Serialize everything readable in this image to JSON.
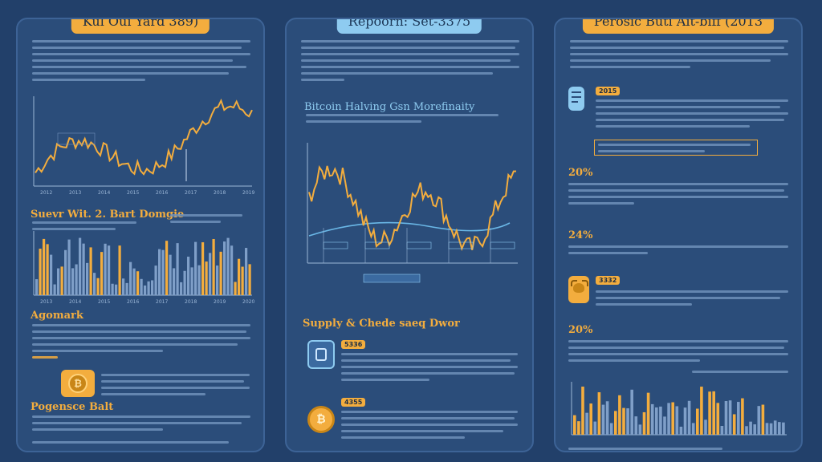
{
  "panels": {
    "left": {
      "title": "Kul Oui Yard 389)",
      "section1_title": "Suevr Wit. 2. Bart Domgie",
      "section2_title": "Agomark",
      "section3_title": "Pogensce Balt",
      "chart_ticks": [
        "2012",
        "2013",
        "2014",
        "2015",
        "2016",
        "2017",
        "2018",
        "2019"
      ],
      "bar_ticks": [
        "2013",
        "2014",
        "2015",
        "2016",
        "2017",
        "2018",
        "2019",
        "2020"
      ]
    },
    "middle": {
      "title": "Repoorn: Set-3375",
      "chart_title": "Bitcoin Halving Gsn Morefinaity",
      "section_title": "Supply & Chede saeq Dwor",
      "badge1": "5336",
      "badge2": "4355"
    },
    "right": {
      "title": "Perosic Buti Ait-biff (2013",
      "badge1": "2015",
      "badge2": "3332",
      "pct1": "20%",
      "pct2": "24%",
      "pct3": "20%"
    }
  },
  "colors": {
    "accent": "#f3ad3e",
    "blue_accent": "#8ecbf0",
    "panel": "#2b4d7a",
    "background": "#22406a"
  },
  "icons": {
    "left_coin": "bitcoin-coin-icon",
    "middle_jar": "jar-icon",
    "middle_coin": "bitcoin-coin-icon",
    "right_doc": "document-icon",
    "right_bull": "bull-icon"
  }
}
